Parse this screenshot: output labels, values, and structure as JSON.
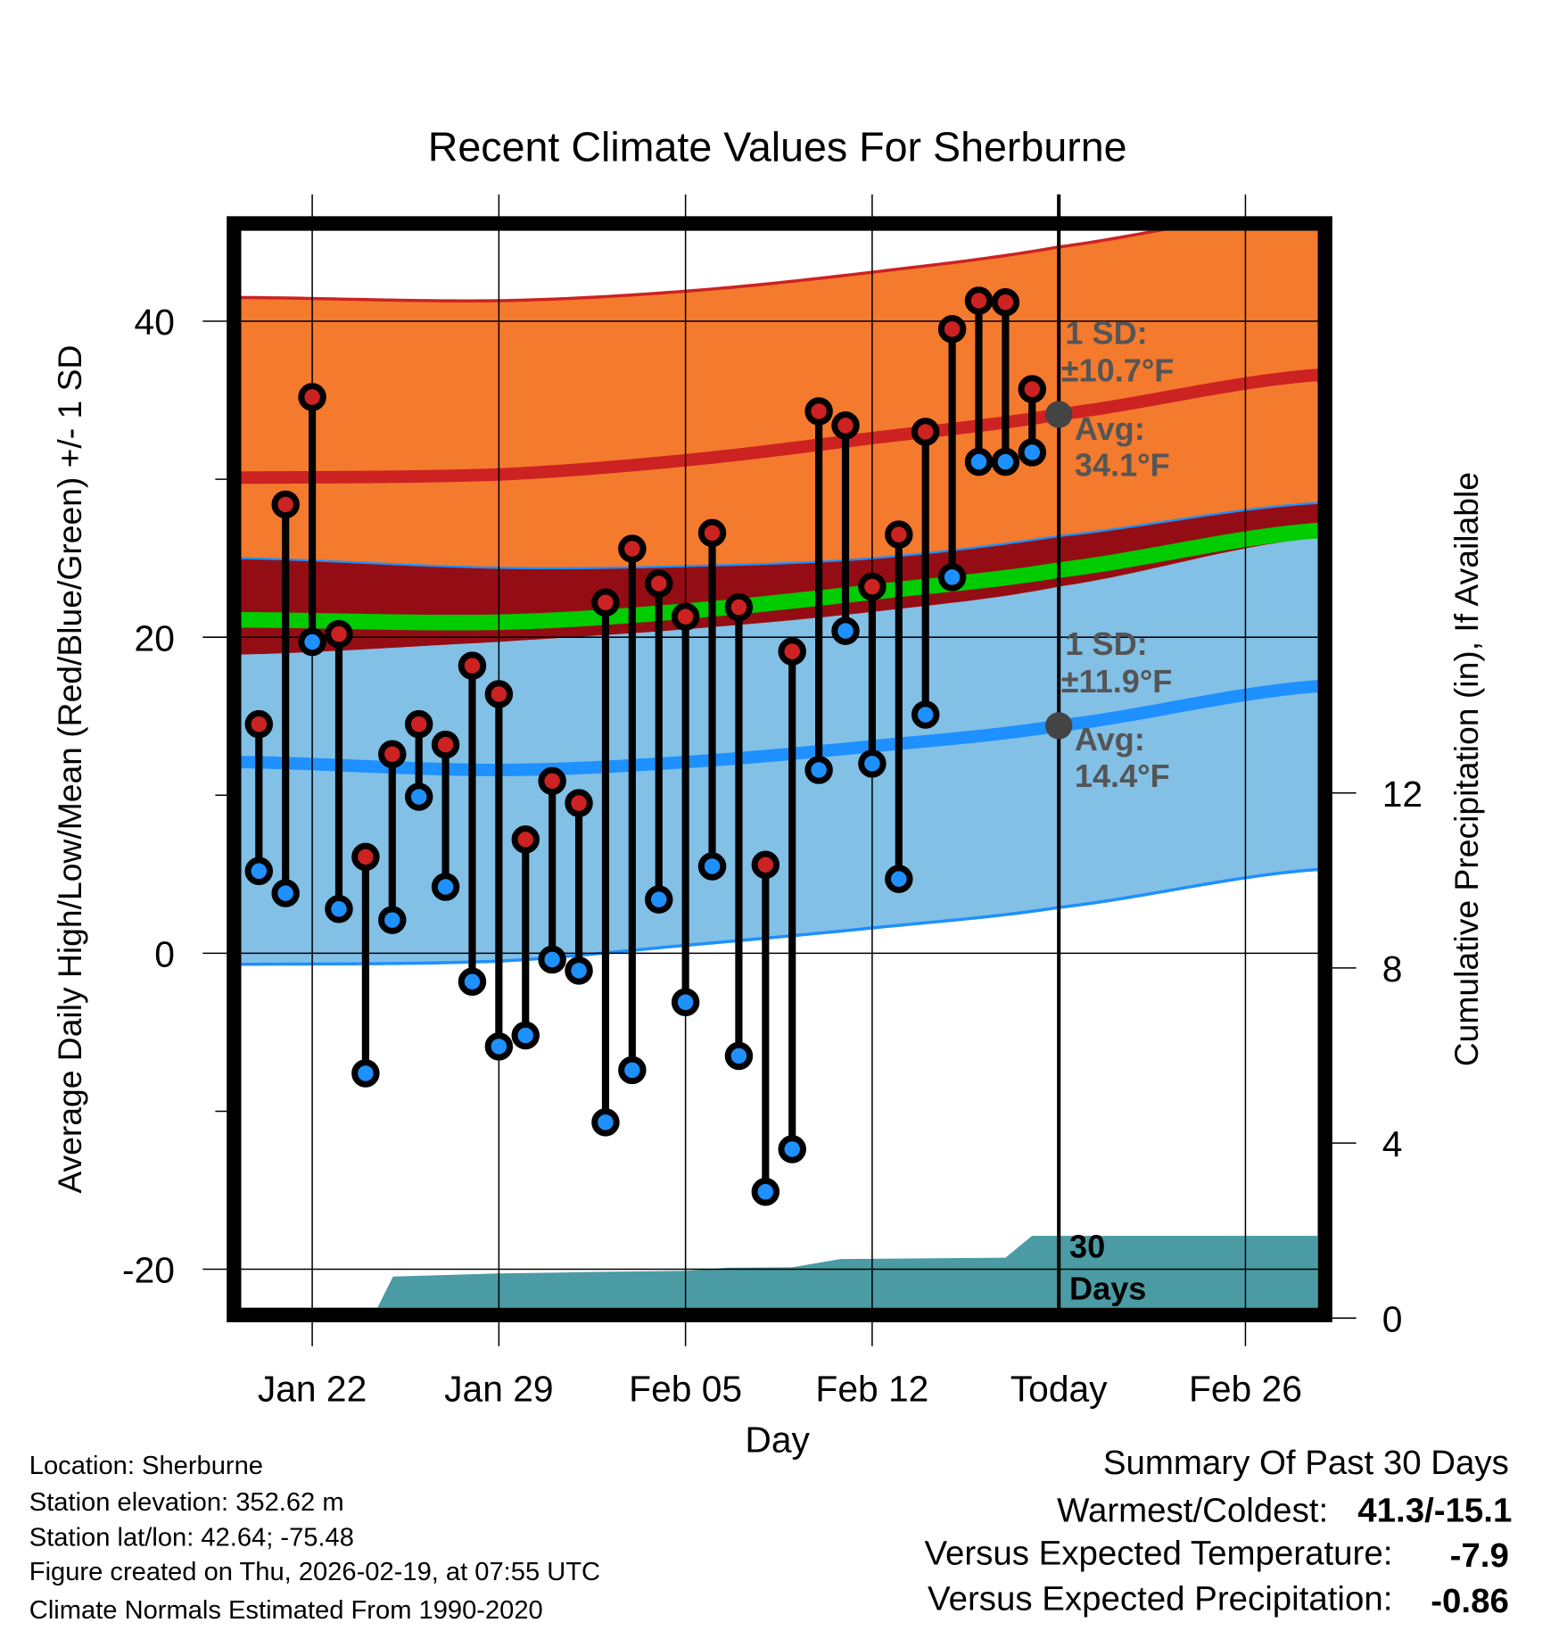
{
  "chart_data": {
    "type": "line",
    "title": "Recent Climate Values For Sherburne",
    "xlabel": "Day",
    "ylabel": "Average Daily High/Low/Mean (Red/Blue/Green) +/- 1 SD",
    "y2label": "Cumulative Precipitation (in), If Available",
    "ylim": [
      -22.4,
      45.7
    ],
    "y2lim": [
      0,
      24.6
    ],
    "y_ticks": [
      "40",
      "20",
      "0",
      "-20"
    ],
    "y_tick_values": [
      40,
      20,
      0,
      -20
    ],
    "y_minor_tick_values": [
      30,
      10,
      -10
    ],
    "y2_ticks": [
      "12",
      "8",
      "4",
      "0"
    ],
    "y2_tick_values": [
      12,
      8,
      4,
      0
    ],
    "x_day_index_note": "day 1 = Jan 20",
    "xlim_days": [
      0.34,
      40.7
    ],
    "x_ticks": [
      {
        "label": "Jan 22",
        "day": 3
      },
      {
        "label": "Jan 29",
        "day": 10
      },
      {
        "label": "Feb 05",
        "day": 17
      },
      {
        "label": "Feb 12",
        "day": 24
      },
      {
        "label": "Today",
        "day": 31
      },
      {
        "label": "Feb 26",
        "day": 38
      }
    ],
    "today_day": 31,
    "observations": {
      "dates": [
        "Jan 20",
        "Jan 21",
        "Jan 22",
        "Jan 23",
        "Jan 24",
        "Jan 25",
        "Jan 26",
        "Jan 27",
        "Jan 28",
        "Jan 29",
        "Jan 30",
        "Jan 31",
        "Feb 01",
        "Feb 02",
        "Feb 03",
        "Feb 04",
        "Feb 05",
        "Feb 06",
        "Feb 07",
        "Feb 08",
        "Feb 09",
        "Feb 10",
        "Feb 11",
        "Feb 12",
        "Feb 13",
        "Feb 14",
        "Feb 15",
        "Feb 16",
        "Feb 17",
        "Feb 18"
      ],
      "high": [
        14.5,
        28.4,
        35.2,
        20.2,
        6.1,
        12.6,
        14.5,
        13.2,
        18.2,
        16.4,
        7.2,
        10.9,
        9.5,
        22.2,
        25.6,
        23.4,
        21.3,
        26.6,
        21.9,
        5.6,
        19.1,
        34.3,
        33.4,
        23.2,
        26.5,
        33.0,
        39.5,
        41.3,
        41.2,
        35.7
      ],
      "low": [
        5.2,
        3.8,
        19.7,
        2.8,
        -7.6,
        2.1,
        9.9,
        4.2,
        -1.8,
        -5.9,
        -5.2,
        -0.4,
        -1.1,
        -10.7,
        -7.4,
        3.4,
        -3.1,
        5.5,
        -6.5,
        -15.1,
        -12.4,
        11.6,
        20.4,
        12.0,
        4.7,
        15.1,
        23.8,
        31.1,
        31.1,
        31.7
      ]
    },
    "normals": {
      "days": [
        0.34,
        10,
        17,
        24,
        31,
        40.7
      ],
      "high_mean": [
        30.1,
        30.3,
        31.2,
        32.6,
        34.1,
        36.6
      ],
      "high_plus_sd": [
        41.5,
        41.3,
        41.9,
        43.1,
        44.7,
        47.3
      ],
      "high_minus_sd": [
        25.0,
        24.4,
        24.5,
        25.0,
        26.4,
        28.5
      ],
      "low_mean": [
        12.1,
        11.6,
        12.1,
        13.1,
        14.4,
        16.9
      ],
      "low_plus_sd": [
        18.9,
        19.7,
        20.5,
        21.6,
        23.2,
        26.3
      ],
      "low_minus_sd": [
        -0.7,
        -0.5,
        0.5,
        1.6,
        2.9,
        5.3
      ]
    },
    "precipitation": {
      "days": [
        5.25,
        6.03,
        10,
        13.1,
        17,
        18.6,
        21,
        22.8,
        29,
        30,
        40.7
      ],
      "cumulative_in": [
        0,
        0.95,
        1.02,
        1.05,
        1.08,
        1.15,
        1.16,
        1.35,
        1.38,
        1.88,
        1.88
      ]
    },
    "annotations": {
      "high_sd_label": "1 SD:",
      "high_sd_value": "±10.7°F",
      "high_avg_label": "Avg:",
      "high_avg_value": "34.1°F",
      "low_sd_label": "1 SD:",
      "low_sd_value": "±11.9°F",
      "low_avg_label": "Avg:",
      "low_avg_value": "14.4°F",
      "period_number": "30",
      "period_unit": "Days"
    },
    "colors": {
      "high_band": "#f47a2e",
      "low_band": "#82c0e6",
      "gap_band": "#950d14",
      "mean_line": "#00cc00",
      "high_line": "#cc2222",
      "low_line": "#1e90ff",
      "precip": "#4a9ba3",
      "annotation": "#555555"
    }
  },
  "footer": {
    "location": "Location: Sherburne",
    "elevation": "Station elevation: 352.62 m",
    "latlon": "Station lat/lon: 42.64; -75.48",
    "created": "Figure created on Thu, 2026-02-19, at 07:55 UTC",
    "normals": "Climate Normals Estimated From 1990-2020"
  },
  "summary": {
    "title": "Summary Of Past 30 Days",
    "warmest_label": "Warmest/Coldest:",
    "warmest_value": "41.3/-15.1",
    "temp_label": "Versus Expected Temperature:",
    "temp_value": "-7.9",
    "temp_color": "#1e90ff",
    "precip_label": "Versus Expected Precipitation:",
    "precip_value": "-0.86",
    "precip_color": "#a0522d"
  }
}
